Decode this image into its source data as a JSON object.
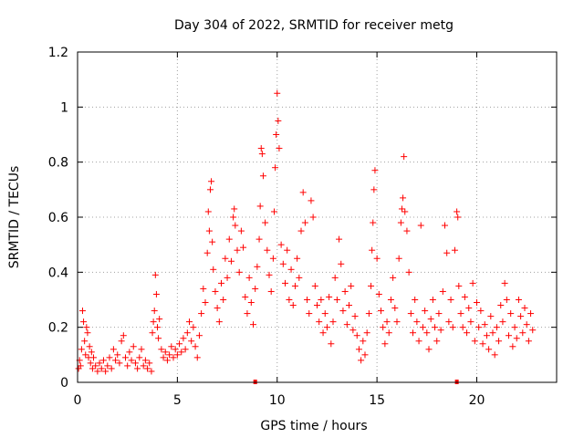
{
  "chart_data": {
    "type": "scatter",
    "title": "Day 304 of 2022, SRMTID for receiver metg",
    "xlabel": "GPS time / hours",
    "ylabel": "SRMTID / TECUs",
    "xlim": [
      0,
      24
    ],
    "ylim": [
      0,
      1.2
    ],
    "xticks": [
      0,
      5,
      10,
      15,
      20
    ],
    "xtick_labels": [
      "0",
      "5",
      "10",
      "15",
      "20"
    ],
    "yticks": [
      0,
      0.2,
      0.4,
      0.6,
      0.8,
      1.0,
      1.2
    ],
    "ytick_labels": [
      "0",
      "0.2",
      "0.4",
      "0.6",
      "0.8",
      "1",
      "1.2"
    ],
    "grid": true,
    "marker": "+",
    "color": "#ff0000",
    "outlier_markers": [
      {
        "x": 8.9,
        "y": 0.0
      },
      {
        "x": 19.0,
        "y": 0.0
      }
    ],
    "series": [
      {
        "name": "SRMTID",
        "points": [
          [
            0.05,
            0.05
          ],
          [
            0.1,
            0.08
          ],
          [
            0.15,
            0.06
          ],
          [
            0.2,
            0.12
          ],
          [
            0.25,
            0.26
          ],
          [
            0.3,
            0.22
          ],
          [
            0.35,
            0.15
          ],
          [
            0.4,
            0.1
          ],
          [
            0.45,
            0.2
          ],
          [
            0.5,
            0.18
          ],
          [
            0.55,
            0.09
          ],
          [
            0.6,
            0.13
          ],
          [
            0.65,
            0.07
          ],
          [
            0.7,
            0.11
          ],
          [
            0.75,
            0.05
          ],
          [
            0.8,
            0.09
          ],
          [
            0.9,
            0.06
          ],
          [
            1.0,
            0.04
          ],
          [
            1.1,
            0.07
          ],
          [
            1.2,
            0.05
          ],
          [
            1.3,
            0.08
          ],
          [
            1.4,
            0.04
          ],
          [
            1.5,
            0.06
          ],
          [
            1.6,
            0.09
          ],
          [
            1.7,
            0.05
          ],
          [
            1.8,
            0.12
          ],
          [
            1.9,
            0.08
          ],
          [
            2.0,
            0.1
          ],
          [
            2.1,
            0.07
          ],
          [
            2.2,
            0.15
          ],
          [
            2.3,
            0.17
          ],
          [
            2.4,
            0.09
          ],
          [
            2.5,
            0.06
          ],
          [
            2.6,
            0.11
          ],
          [
            2.7,
            0.08
          ],
          [
            2.8,
            0.13
          ],
          [
            2.9,
            0.07
          ],
          [
            3.0,
            0.05
          ],
          [
            3.1,
            0.09
          ],
          [
            3.2,
            0.12
          ],
          [
            3.3,
            0.06
          ],
          [
            3.4,
            0.08
          ],
          [
            3.5,
            0.05
          ],
          [
            3.6,
            0.07
          ],
          [
            3.7,
            0.04
          ],
          [
            3.75,
            0.18
          ],
          [
            3.8,
            0.22
          ],
          [
            3.85,
            0.26
          ],
          [
            3.9,
            0.39
          ],
          [
            3.95,
            0.32
          ],
          [
            4.0,
            0.2
          ],
          [
            4.05,
            0.16
          ],
          [
            4.1,
            0.23
          ],
          [
            4.2,
            0.12
          ],
          [
            4.3,
            0.09
          ],
          [
            4.4,
            0.11
          ],
          [
            4.5,
            0.08
          ],
          [
            4.6,
            0.1
          ],
          [
            4.7,
            0.13
          ],
          [
            4.8,
            0.09
          ],
          [
            4.9,
            0.12
          ],
          [
            5.0,
            0.1
          ],
          [
            5.1,
            0.14
          ],
          [
            5.2,
            0.11
          ],
          [
            5.3,
            0.16
          ],
          [
            5.4,
            0.12
          ],
          [
            5.5,
            0.18
          ],
          [
            5.6,
            0.22
          ],
          [
            5.7,
            0.15
          ],
          [
            5.8,
            0.2
          ],
          [
            5.9,
            0.13
          ],
          [
            6.0,
            0.09
          ],
          [
            6.1,
            0.17
          ],
          [
            6.2,
            0.25
          ],
          [
            6.3,
            0.34
          ],
          [
            6.4,
            0.29
          ],
          [
            6.5,
            0.47
          ],
          [
            6.55,
            0.62
          ],
          [
            6.6,
            0.55
          ],
          [
            6.65,
            0.7
          ],
          [
            6.7,
            0.73
          ],
          [
            6.75,
            0.51
          ],
          [
            6.8,
            0.41
          ],
          [
            6.9,
            0.33
          ],
          [
            7.0,
            0.27
          ],
          [
            7.1,
            0.22
          ],
          [
            7.2,
            0.36
          ],
          [
            7.3,
            0.3
          ],
          [
            7.4,
            0.45
          ],
          [
            7.5,
            0.38
          ],
          [
            7.6,
            0.52
          ],
          [
            7.7,
            0.44
          ],
          [
            7.8,
            0.6
          ],
          [
            7.85,
            0.63
          ],
          [
            7.9,
            0.57
          ],
          [
            8.0,
            0.48
          ],
          [
            8.1,
            0.4
          ],
          [
            8.2,
            0.55
          ],
          [
            8.3,
            0.49
          ],
          [
            8.4,
            0.31
          ],
          [
            8.5,
            0.25
          ],
          [
            8.6,
            0.38
          ],
          [
            8.7,
            0.29
          ],
          [
            8.8,
            0.21
          ],
          [
            8.9,
            0.34
          ],
          [
            9.0,
            0.42
          ],
          [
            9.1,
            0.52
          ],
          [
            9.15,
            0.64
          ],
          [
            9.2,
            0.85
          ],
          [
            9.25,
            0.83
          ],
          [
            9.3,
            0.75
          ],
          [
            9.4,
            0.58
          ],
          [
            9.5,
            0.48
          ],
          [
            9.6,
            0.39
          ],
          [
            9.7,
            0.33
          ],
          [
            9.8,
            0.45
          ],
          [
            9.85,
            0.62
          ],
          [
            9.9,
            0.78
          ],
          [
            9.95,
            0.9
          ],
          [
            10.0,
            1.05
          ],
          [
            10.05,
            0.95
          ],
          [
            10.1,
            0.85
          ],
          [
            10.2,
            0.5
          ],
          [
            10.3,
            0.43
          ],
          [
            10.4,
            0.36
          ],
          [
            10.5,
            0.48
          ],
          [
            10.6,
            0.3
          ],
          [
            10.7,
            0.41
          ],
          [
            10.8,
            0.28
          ],
          [
            10.9,
            0.35
          ],
          [
            11.0,
            0.45
          ],
          [
            11.1,
            0.38
          ],
          [
            11.2,
            0.55
          ],
          [
            11.3,
            0.69
          ],
          [
            11.4,
            0.58
          ],
          [
            11.5,
            0.3
          ],
          [
            11.6,
            0.25
          ],
          [
            11.7,
            0.66
          ],
          [
            11.8,
            0.6
          ],
          [
            11.9,
            0.35
          ],
          [
            12.0,
            0.28
          ],
          [
            12.1,
            0.22
          ],
          [
            12.2,
            0.3
          ],
          [
            12.3,
            0.18
          ],
          [
            12.4,
            0.25
          ],
          [
            12.5,
            0.2
          ],
          [
            12.6,
            0.31
          ],
          [
            12.7,
            0.14
          ],
          [
            12.8,
            0.22
          ],
          [
            12.9,
            0.38
          ],
          [
            13.0,
            0.3
          ],
          [
            13.1,
            0.52
          ],
          [
            13.2,
            0.43
          ],
          [
            13.3,
            0.26
          ],
          [
            13.4,
            0.33
          ],
          [
            13.5,
            0.21
          ],
          [
            13.6,
            0.28
          ],
          [
            13.7,
            0.35
          ],
          [
            13.8,
            0.19
          ],
          [
            13.9,
            0.24
          ],
          [
            14.0,
            0.17
          ],
          [
            14.1,
            0.12
          ],
          [
            14.2,
            0.08
          ],
          [
            14.3,
            0.15
          ],
          [
            14.4,
            0.1
          ],
          [
            14.5,
            0.18
          ],
          [
            14.6,
            0.25
          ],
          [
            14.7,
            0.35
          ],
          [
            14.75,
            0.48
          ],
          [
            14.8,
            0.58
          ],
          [
            14.85,
            0.7
          ],
          [
            14.9,
            0.77
          ],
          [
            15.0,
            0.45
          ],
          [
            15.1,
            0.32
          ],
          [
            15.2,
            0.26
          ],
          [
            15.3,
            0.2
          ],
          [
            15.4,
            0.14
          ],
          [
            15.5,
            0.22
          ],
          [
            15.6,
            0.18
          ],
          [
            15.7,
            0.3
          ],
          [
            15.8,
            0.38
          ],
          [
            15.9,
            0.27
          ],
          [
            16.0,
            0.22
          ],
          [
            16.1,
            0.45
          ],
          [
            16.2,
            0.58
          ],
          [
            16.25,
            0.63
          ],
          [
            16.3,
            0.67
          ],
          [
            16.35,
            0.82
          ],
          [
            16.4,
            0.62
          ],
          [
            16.5,
            0.55
          ],
          [
            16.6,
            0.4
          ],
          [
            16.7,
            0.25
          ],
          [
            16.8,
            0.18
          ],
          [
            16.9,
            0.3
          ],
          [
            17.0,
            0.22
          ],
          [
            17.1,
            0.15
          ],
          [
            17.2,
            0.57
          ],
          [
            17.3,
            0.2
          ],
          [
            17.4,
            0.26
          ],
          [
            17.5,
            0.18
          ],
          [
            17.6,
            0.12
          ],
          [
            17.7,
            0.23
          ],
          [
            17.8,
            0.3
          ],
          [
            17.9,
            0.2
          ],
          [
            18.0,
            0.15
          ],
          [
            18.1,
            0.25
          ],
          [
            18.2,
            0.19
          ],
          [
            18.3,
            0.33
          ],
          [
            18.4,
            0.57
          ],
          [
            18.5,
            0.47
          ],
          [
            18.6,
            0.22
          ],
          [
            18.7,
            0.3
          ],
          [
            18.8,
            0.2
          ],
          [
            18.9,
            0.48
          ],
          [
            19.0,
            0.62
          ],
          [
            19.05,
            0.6
          ],
          [
            19.1,
            0.35
          ],
          [
            19.2,
            0.25
          ],
          [
            19.3,
            0.2
          ],
          [
            19.4,
            0.31
          ],
          [
            19.5,
            0.18
          ],
          [
            19.6,
            0.27
          ],
          [
            19.7,
            0.22
          ],
          [
            19.8,
            0.36
          ],
          [
            19.9,
            0.15
          ],
          [
            20.0,
            0.29
          ],
          [
            20.1,
            0.2
          ],
          [
            20.2,
            0.26
          ],
          [
            20.3,
            0.14
          ],
          [
            20.4,
            0.21
          ],
          [
            20.5,
            0.17
          ],
          [
            20.6,
            0.12
          ],
          [
            20.7,
            0.24
          ],
          [
            20.8,
            0.18
          ],
          [
            20.9,
            0.1
          ],
          [
            21.0,
            0.2
          ],
          [
            21.1,
            0.15
          ],
          [
            21.2,
            0.28
          ],
          [
            21.3,
            0.22
          ],
          [
            21.4,
            0.36
          ],
          [
            21.5,
            0.3
          ],
          [
            21.6,
            0.17
          ],
          [
            21.7,
            0.25
          ],
          [
            21.8,
            0.13
          ],
          [
            21.9,
            0.2
          ],
          [
            22.0,
            0.16
          ],
          [
            22.1,
            0.3
          ],
          [
            22.2,
            0.24
          ],
          [
            22.3,
            0.18
          ],
          [
            22.4,
            0.27
          ],
          [
            22.5,
            0.21
          ],
          [
            22.6,
            0.15
          ],
          [
            22.7,
            0.25
          ],
          [
            22.8,
            0.19
          ]
        ]
      }
    ]
  }
}
